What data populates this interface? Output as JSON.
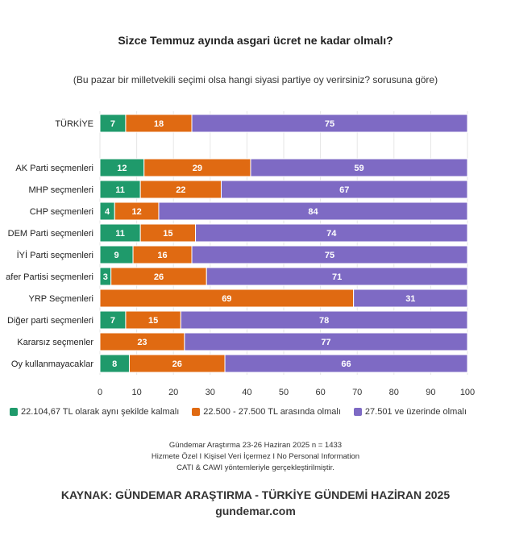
{
  "title": "Sizce Temmuz ayında asgari ücret ne kadar olmalı?",
  "subtitle": "(Bu pazar bir milletvekili seçimi olsa hangi siyasi partiye oy verirsiniz? sorusuna göre)",
  "chart_data": {
    "type": "bar",
    "orientation": "horizontal",
    "stacked": true,
    "categories": [
      "TÜRKİYE",
      "AK Parti seçmenleri",
      "MHP seçmenleri",
      "CHP seçmenleri",
      "DEM Parti seçmenleri",
      "İYİ Parti seçmenleri",
      "afer Partisi seçmenleri",
      "YRP Seçmenleri",
      "Diğer parti seçmenleri",
      "Kararsız seçmenler",
      "Oy kullanmayacaklar"
    ],
    "series": [
      {
        "name": "22.104,67 TL olarak aynı şekilde kalmalı",
        "color": "#1f9a6b",
        "values": [
          7,
          12,
          11,
          4,
          11,
          9,
          3,
          0,
          7,
          0,
          8
        ]
      },
      {
        "name": "22.500 - 27.500 TL arasında olmalı",
        "color": "#e06a12",
        "values": [
          18,
          29,
          22,
          12,
          15,
          16,
          26,
          69,
          15,
          23,
          26
        ]
      },
      {
        "name": "27.501 ve üzerinde olmalı",
        "color": "#7e6ac4",
        "values": [
          75,
          59,
          67,
          84,
          74,
          75,
          71,
          31,
          78,
          77,
          66
        ]
      }
    ],
    "xlim": [
      0,
      100
    ],
    "xticks": [
      0,
      10,
      20,
      30,
      40,
      50,
      60,
      70,
      80,
      90,
      100
    ],
    "xlabel": "",
    "ylabel": "",
    "grid": true,
    "legend_position": "bottom"
  },
  "legend": {
    "items": [
      {
        "label": "22.104,67 TL olarak aynı şekilde kalmalı",
        "color": "#1f9a6b"
      },
      {
        "label": "22.500 - 27.500 TL arasında olmalı",
        "color": "#e06a12"
      },
      {
        "label": "27.501 ve üzerinde olmalı",
        "color": "#7e6ac4"
      }
    ]
  },
  "method": {
    "line1": "Gündemar Araştırma 23-26 Haziran 2025 n = 1433",
    "line2": "Hizmete Özel I Kişisel Veri İçermez I No Personal Information",
    "line3": "CATI & CAWI yöntemleriyle gerçekleştirilmiştir."
  },
  "source": {
    "line1": "KAYNAK: GÜNDEMAR ARAŞTIRMA - TÜRKİYE GÜNDEMİ HAZİRAN 2025",
    "line2": "gundemar.com"
  }
}
